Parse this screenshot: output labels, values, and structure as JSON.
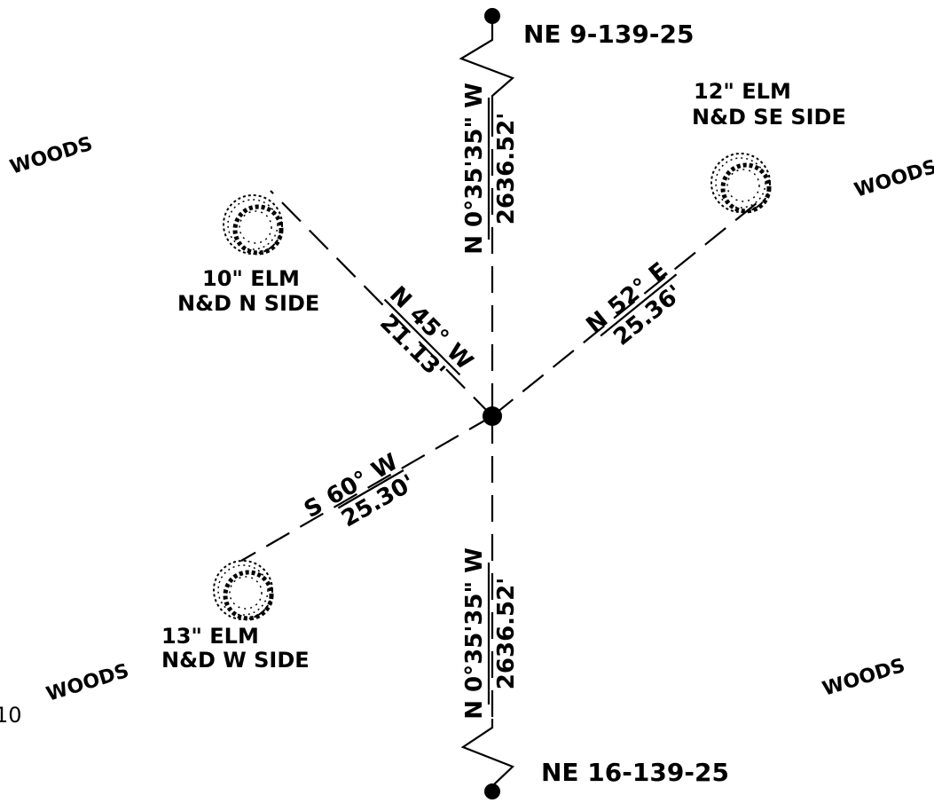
{
  "corners": {
    "north": "NE 9-139-25",
    "south": "NE 16-139-25"
  },
  "section_line_north": {
    "bearing": "N 0°35'35\" W",
    "distance": "2636.52'"
  },
  "section_line_south": {
    "bearing": "N 0°35'35\" W",
    "distance": "2636.52'"
  },
  "ties": {
    "nw": {
      "lead": "N",
      "angle": "45°",
      "dir": "W",
      "distance": "21.13'"
    },
    "ne": {
      "lead": "N",
      "angle": "52°",
      "dir": "E",
      "distance": "25.36'"
    },
    "sw": {
      "lead": "S",
      "angle": "60°",
      "dir": "W",
      "distance": "25.30'"
    }
  },
  "trees": {
    "nw": {
      "size": "10\" ELM",
      "note": "N&D N SIDE"
    },
    "ne": {
      "size": "12\" ELM",
      "note": "N&D SE SIDE"
    },
    "sw": {
      "size": "13\" ELM",
      "note": "N&D W SIDE"
    }
  },
  "woods_labels": [
    "WOODS",
    "WOODS",
    "WOODS",
    "WOODS"
  ],
  "edge_fragment": "10"
}
